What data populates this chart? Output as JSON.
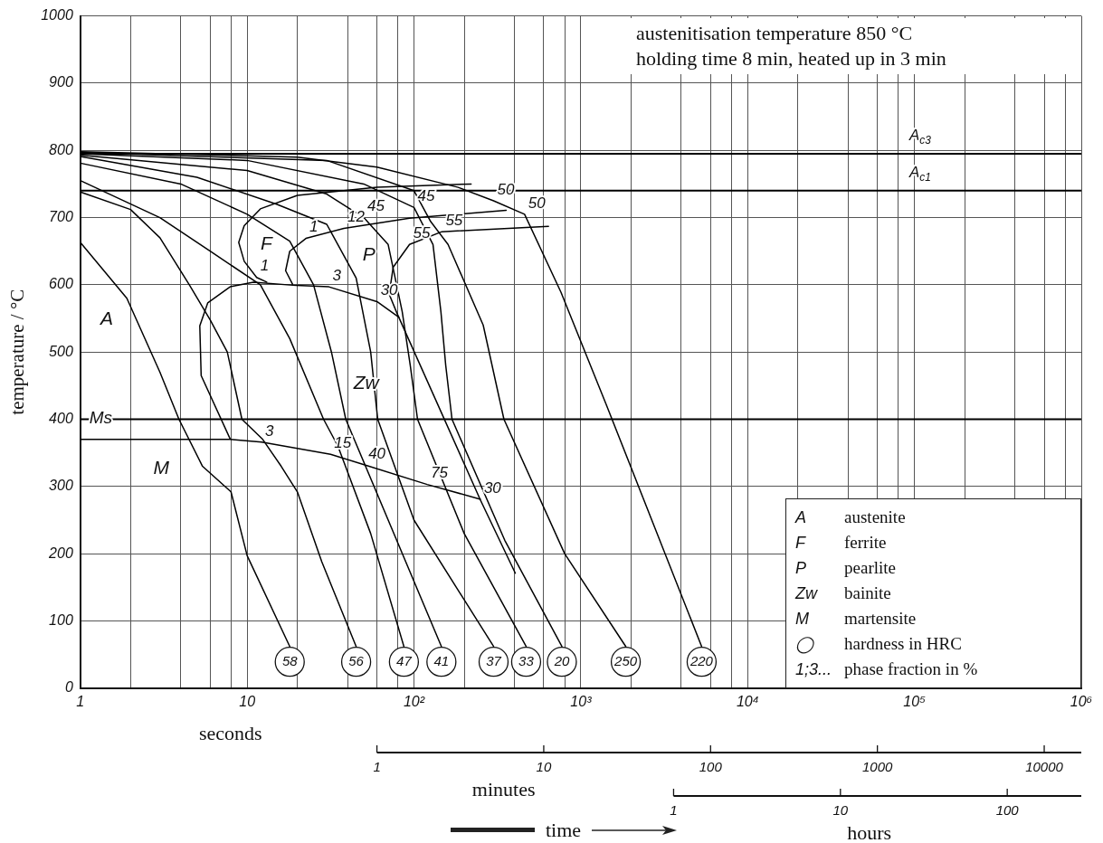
{
  "chart_data": [
    {
      "type": "line",
      "title": "austenitisation temperature 850 °C",
      "subtitle": "holding time 8 min, heated up in 3 min",
      "xlabel": "seconds",
      "ylabel": "temperature / °C",
      "log": "x",
      "xlim": [
        1,
        1000000
      ],
      "xticks": [
        1,
        {
          "value": 2,
          "label": null
        },
        {
          "value": 4,
          "label": null
        },
        {
          "value": 6,
          "label": null
        },
        {
          "value": 8,
          "label": null
        },
        10,
        {
          "value": 20,
          "label": null
        },
        {
          "value": 40,
          "label": null
        },
        {
          "value": 60,
          "label": null
        },
        {
          "value": 80,
          "label": null
        },
        {
          "value": 100,
          "label": "10²"
        },
        {
          "value": 200,
          "label": null
        },
        {
          "value": 400,
          "label": null
        },
        {
          "value": 600,
          "label": null
        },
        {
          "value": 800,
          "label": null
        },
        {
          "value": 1000,
          "label": "10³"
        },
        {
          "value": 2000,
          "label": null
        },
        {
          "value": 4000,
          "label": null
        },
        {
          "value": 6000,
          "label": null
        },
        {
          "value": 8000,
          "label": null
        },
        {
          "value": 10000,
          "label": "10⁴"
        },
        {
          "value": 20000,
          "label": null
        },
        {
          "value": 40000,
          "label": null
        },
        {
          "value": 60000,
          "label": null
        },
        {
          "value": 80000,
          "label": null
        },
        {
          "value": 100000,
          "label": "10⁵"
        },
        {
          "value": 200000,
          "label": null
        },
        {
          "value": 400000,
          "label": null
        },
        {
          "value": 600000,
          "label": null
        },
        {
          "value": 800000,
          "label": null
        },
        {
          "value": 1000000,
          "label": "10⁶"
        }
      ],
      "ylim": [
        0,
        1000
      ],
      "yticks": [
        0,
        100,
        200,
        300,
        400,
        500,
        600,
        700,
        800,
        900,
        1000
      ],
      "grid": true,
      "marker": "none",
      "line_style": "solid",
      "ref_lines": [
        {
          "axis": "y",
          "value": 795,
          "label": "A$_{c3}$"
        },
        {
          "axis": "y",
          "value": 740,
          "label": "A$_{c1}$"
        },
        {
          "axis": "y",
          "value": 400,
          "label": "Ms"
        }
      ],
      "series": [
        {
          "color": "#000000",
          "x": [
            1,
            1.9,
            3,
            3.9,
            5.4,
            8,
            10,
            18
          ],
          "values": [
            663,
            580,
            470,
            400,
            330,
            292,
            197,
            62
          ]
        },
        {
          "color": "#000000",
          "x": [
            1,
            2,
            3,
            4.5,
            6,
            7.6,
            9.3,
            12.4,
            16,
            20,
            28,
            45
          ],
          "values": [
            738,
            712,
            670,
            600,
            548,
            500,
            400,
            370,
            330,
            292,
            188,
            62
          ]
        },
        {
          "color": "#000000",
          "x": [
            1,
            3,
            6,
            12,
            18,
            28.7,
            35,
            55,
            87
          ],
          "values": [
            755,
            700,
            650,
            600,
            520,
            400,
            360,
            230,
            62
          ]
        },
        {
          "color": "#000000",
          "x": [
            1,
            4,
            10,
            18,
            25,
            32,
            39,
            146
          ],
          "values": [
            781,
            750,
            705,
            665,
            600,
            500,
            400,
            62
          ]
        },
        {
          "color": "#000000",
          "x": [
            1,
            5,
            15,
            30,
            45,
            55,
            60.6,
            100,
            300
          ],
          "values": [
            791,
            760,
            720,
            690,
            610,
            500,
            400,
            250,
            62
          ]
        },
        {
          "color": "#000000",
          "x": [
            1,
            10,
            30,
            50,
            70,
            85,
            95,
            105,
            200,
            470
          ],
          "values": [
            793,
            770,
            735,
            700,
            660,
            560,
            480,
            400,
            230,
            62
          ]
        },
        {
          "color": "#000000",
          "x": [
            1,
            10,
            50,
            100,
            130,
            145,
            155,
            169,
            350,
            770
          ],
          "values": [
            795,
            785,
            750,
            715,
            660,
            560,
            480,
            400,
            220,
            62
          ]
        },
        {
          "color": "#000000",
          "x": [
            1,
            30,
            100,
            126,
            160,
            260,
            346,
            800,
            1860
          ],
          "values": [
            797,
            785,
            740,
            694,
            660,
            540,
            400,
            200,
            62
          ]
        },
        {
          "color": "#000000",
          "x": [
            1,
            20,
            60,
            184,
            300,
            460,
            760,
            1420,
            5300
          ],
          "values": [
            798,
            790,
            775,
            745,
            725,
            705,
            589,
            422,
            62
          ]
        },
        {
          "color": "#000000",
          "x": [
            220,
            60,
            20,
            12,
            9.6,
            8.9,
            9.6,
            11.4,
            13.1
          ],
          "values": [
            750,
            745,
            733,
            713,
            688,
            663,
            635,
            611,
            604
          ]
        },
        {
          "color": "#000000",
          "x": [
            357,
            94,
            38,
            22.5,
            18,
            17,
            18.7
          ],
          "values": [
            711,
            699,
            684,
            669,
            650,
            621,
            601
          ]
        },
        {
          "color": "#000000",
          "x": [
            640,
            147,
            94,
            75,
            71,
            79,
            250,
            405
          ],
          "values": [
            687,
            679,
            660,
            626,
            586,
            558,
            280,
            171
          ]
        },
        {
          "color": "#000000",
          "x": [
            7.9,
            5.3,
            5.2,
            5.8,
            7.9,
            10.9,
            19.7,
            30.9,
            60,
            81
          ],
          "values": [
            371,
            465,
            539,
            573,
            597,
            604,
            599,
            597,
            575,
            552
          ]
        },
        {
          "color": "#000000",
          "x": [
            1,
            7.9,
            12.2,
            31.6,
            50.7,
            120,
            250
          ],
          "values": [
            370,
            370,
            366,
            348,
            332,
            303,
            281
          ]
        }
      ],
      "annotations": [
        {
          "text": "58",
          "x": 18,
          "y": 62
        },
        {
          "text": "56",
          "x": 45,
          "y": 62
        },
        {
          "text": "47",
          "x": 87,
          "y": 62
        },
        {
          "text": "41",
          "x": 146,
          "y": 62
        },
        {
          "text": "37",
          "x": 300,
          "y": 62
        },
        {
          "text": "33",
          "x": 470,
          "y": 62
        },
        {
          "text": "20",
          "x": 770,
          "y": 62
        },
        {
          "text": "250",
          "x": 1860,
          "y": 62
        },
        {
          "text": "220",
          "x": 5300,
          "y": 62
        },
        {
          "text": "1",
          "x": 11.4,
          "y": 611
        },
        {
          "text": "1",
          "x": 22.5,
          "y": 669
        },
        {
          "text": "12",
          "x": 38,
          "y": 684
        },
        {
          "text": "45",
          "x": 50,
          "y": 700
        },
        {
          "text": "45",
          "x": 100,
          "y": 715
        },
        {
          "text": "3",
          "x": 30.9,
          "y": 597
        },
        {
          "text": "30",
          "x": 60,
          "y": 575
        },
        {
          "text": "55",
          "x": 94,
          "y": 660
        },
        {
          "text": "55",
          "x": 147,
          "y": 679
        },
        {
          "text": "50",
          "x": 300,
          "y": 725
        },
        {
          "text": "50",
          "x": 460,
          "y": 705
        },
        {
          "text": "3",
          "x": 12.2,
          "y": 366
        },
        {
          "text": "15",
          "x": 31.6,
          "y": 348
        },
        {
          "text": "40",
          "x": 50.7,
          "y": 332
        },
        {
          "text": "75",
          "x": 120,
          "y": 303
        },
        {
          "text": "30",
          "x": 250,
          "y": 280
        },
        "A",
        "F",
        "P",
        "Zw",
        "M",
        "time",
        "A",
        "austenite",
        "F",
        "ferrite",
        "P",
        "pearlite",
        "Zw",
        "bainite",
        "M",
        "martensite",
        "◯",
        "hardness in HRC",
        "1;3...",
        "phase fraction in %"
      ]
    },
    {
      "type": "other",
      "xlabel": "minutes",
      "annotations": [
        "1",
        "10",
        "100",
        "1000",
        "10000"
      ]
    },
    {
      "type": "other",
      "xlabel": "hours",
      "annotations": [
        "1",
        "10",
        "100"
      ]
    }
  ]
}
